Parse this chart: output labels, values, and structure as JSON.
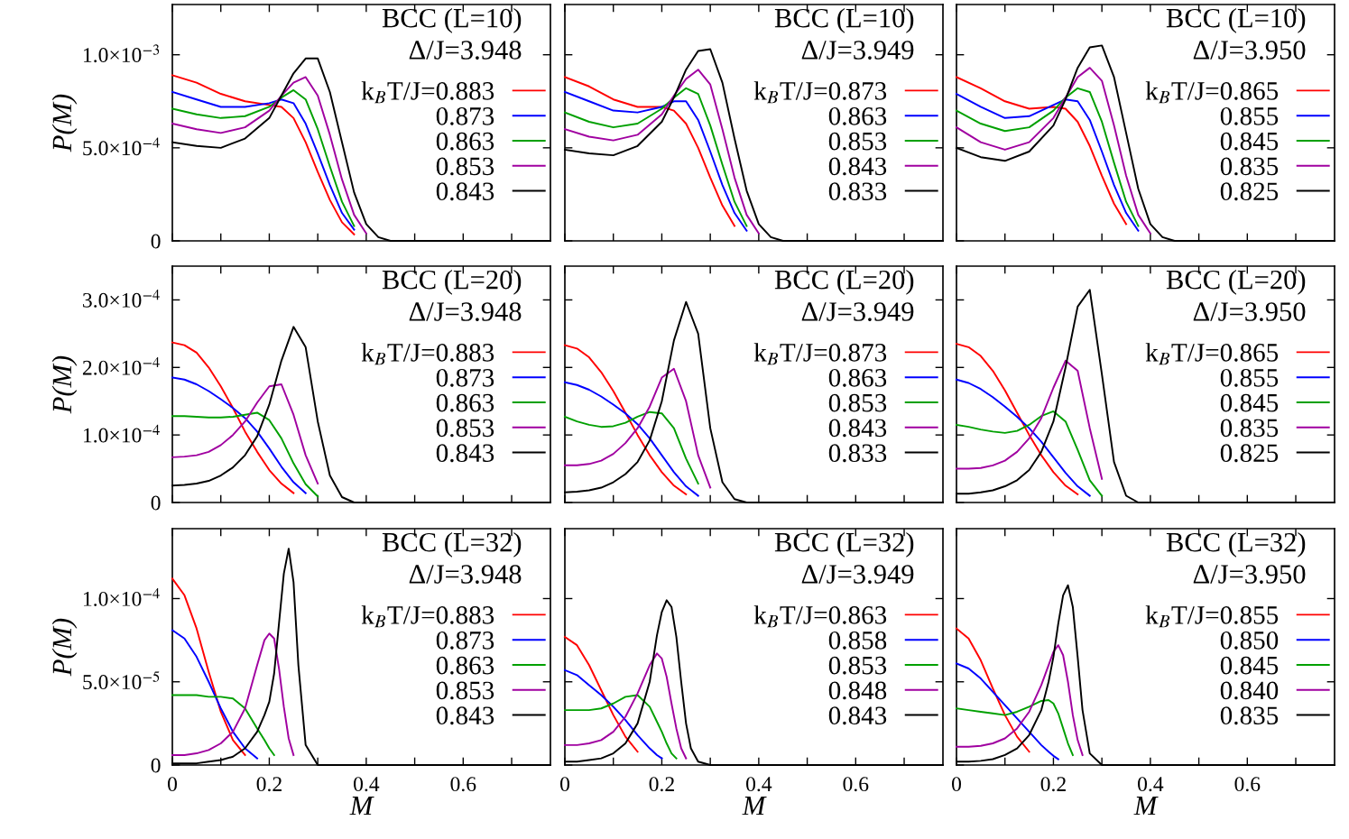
{
  "chart_data": [
    {
      "type": "line",
      "ylabel": "P(M)",
      "tick_labels": "y",
      "legend": "right",
      "annotations": [
        "BCC (L=10)",
        "Δ/J=3.948"
      ],
      "xlim": [
        0,
        0.78
      ],
      "ylim": [
        0,
        0.00127
      ],
      "xticks": [
        {
          "value": 0,
          "label": null
        },
        {
          "value": 0.1,
          "label": null
        },
        {
          "value": 0.2,
          "label": null
        },
        {
          "value": 0.3,
          "label": null
        },
        {
          "value": 0.4,
          "label": null
        },
        {
          "value": 0.5,
          "label": null
        },
        {
          "value": 0.6,
          "label": null
        },
        {
          "value": 0.7,
          "label": null
        }
      ],
      "yticks": [
        0,
        {
          "value": 0.0005,
          "label": "5.0×10$^{−4}$"
        },
        {
          "value": 0.001,
          "label": "1.0×10$^{−3}$"
        }
      ],
      "x": [
        0,
        0.05,
        0.1,
        0.15,
        0.2,
        0.225,
        0.25,
        0.275,
        0.3,
        0.325,
        0.35,
        0.375,
        0.4,
        0.425,
        0.45,
        0.78
      ],
      "series": [
        {
          "name": "k$_{B}$T/J=0.883",
          "color": "#ff0000",
          "values": [
            0.00089,
            0.00085,
            0.00079,
            0.00075,
            0.00073,
            0.00072,
            0.00066,
            0.00053,
            0.00037,
            0.00022,
            0.0001,
            3.5e-05,
            null,
            null,
            null,
            null
          ]
        },
        {
          "name": "0.873",
          "color": "#0000ff",
          "values": [
            0.0008,
            0.00076,
            0.00072,
            0.00072,
            0.00074,
            0.00076,
            0.00074,
            0.00063,
            0.00047,
            0.0003,
            0.00015,
            6e-05,
            null,
            null,
            null,
            null
          ]
        },
        {
          "name": "0.863",
          "color": "#00a000",
          "values": [
            0.00071,
            0.00068,
            0.00066,
            0.00067,
            0.00072,
            0.00077,
            0.00081,
            0.00076,
            0.0006,
            0.0004,
            0.00021,
            8e-05,
            null,
            null,
            null,
            null
          ]
        },
        {
          "name": "0.853",
          "color": "#a000a0",
          "values": [
            0.00063,
            0.0006,
            0.00058,
            0.00061,
            0.0007,
            0.00078,
            0.00085,
            0.00088,
            0.00078,
            0.00057,
            0.00033,
            0.00014,
            4e-05,
            null,
            null,
            null
          ]
        },
        {
          "name": "0.843",
          "color": "#000000",
          "values": [
            0.00053,
            0.00051,
            0.0005,
            0.00055,
            0.00066,
            0.00078,
            0.0009,
            0.00098,
            0.00098,
            0.0008,
            0.00053,
            0.00026,
            9e-05,
            2e-05,
            0,
            0
          ]
        }
      ]
    },
    {
      "type": "line",
      "tick_labels": false,
      "legend": "right",
      "annotations": [
        "BCC (L=10)",
        "Δ/J=3.949"
      ],
      "xlim": [
        0,
        0.78
      ],
      "ylim": [
        0,
        0.00127
      ],
      "xticks": [
        {
          "value": 0,
          "label": null
        },
        {
          "value": 0.1,
          "label": null
        },
        {
          "value": 0.2,
          "label": null
        },
        {
          "value": 0.3,
          "label": null
        },
        {
          "value": 0.4,
          "label": null
        },
        {
          "value": 0.5,
          "label": null
        },
        {
          "value": 0.6,
          "label": null
        },
        {
          "value": 0.7,
          "label": null
        }
      ],
      "yticks": [
        {
          "value": 0,
          "label": null
        },
        {
          "value": 0.0005,
          "label": null
        },
        {
          "value": 0.001,
          "label": null
        }
      ],
      "x": [
        0,
        0.05,
        0.1,
        0.15,
        0.2,
        0.225,
        0.25,
        0.275,
        0.3,
        0.325,
        0.35,
        0.375,
        0.4,
        0.425,
        0.45,
        0.78
      ],
      "series": [
        {
          "name": "k$_{B}$T/J=0.873",
          "color": "#ff0000",
          "values": [
            0.00088,
            0.00083,
            0.00076,
            0.00072,
            0.00072,
            0.0007,
            0.00063,
            0.0005,
            0.00034,
            0.00019,
            8e-05,
            null,
            null,
            null,
            null,
            null
          ]
        },
        {
          "name": "0.863",
          "color": "#0000ff",
          "values": [
            0.0008,
            0.00075,
            0.0007,
            0.00069,
            0.00072,
            0.00075,
            0.00075,
            0.00065,
            0.00048,
            0.0003,
            0.00015,
            5.5e-05,
            null,
            null,
            null,
            null
          ]
        },
        {
          "name": "0.853",
          "color": "#00a000",
          "values": [
            0.00069,
            0.00064,
            0.00061,
            0.00063,
            0.00071,
            0.00077,
            0.00082,
            0.00079,
            0.00062,
            0.00041,
            0.00021,
            8e-05,
            null,
            null,
            null,
            null
          ]
        },
        {
          "name": "0.843",
          "color": "#a000a0",
          "values": [
            0.0006,
            0.00056,
            0.00054,
            0.00057,
            0.00068,
            0.00078,
            0.00087,
            0.00092,
            0.00084,
            0.0006,
            0.00034,
            0.00014,
            4e-05,
            null,
            null,
            null
          ]
        },
        {
          "name": "0.833",
          "color": "#000000",
          "values": [
            0.00049,
            0.00047,
            0.00046,
            0.00051,
            0.00064,
            0.00077,
            0.00092,
            0.00102,
            0.00103,
            0.00085,
            0.00055,
            0.00027,
            9e-05,
            2e-05,
            0,
            0
          ]
        }
      ]
    },
    {
      "type": "line",
      "tick_labels": false,
      "legend": "right",
      "annotations": [
        "BCC (L=10)",
        "Δ/J=3.950"
      ],
      "xlim": [
        0,
        0.78
      ],
      "ylim": [
        0,
        0.00127
      ],
      "xticks": [
        {
          "value": 0,
          "label": null
        },
        {
          "value": 0.1,
          "label": null
        },
        {
          "value": 0.2,
          "label": null
        },
        {
          "value": 0.3,
          "label": null
        },
        {
          "value": 0.4,
          "label": null
        },
        {
          "value": 0.5,
          "label": null
        },
        {
          "value": 0.6,
          "label": null
        },
        {
          "value": 0.7,
          "label": null
        }
      ],
      "yticks": [
        {
          "value": 0,
          "label": null
        },
        {
          "value": 0.0005,
          "label": null
        },
        {
          "value": 0.001,
          "label": null
        }
      ],
      "x": [
        0,
        0.05,
        0.1,
        0.15,
        0.2,
        0.225,
        0.25,
        0.275,
        0.3,
        0.325,
        0.35,
        0.375,
        0.4,
        0.425,
        0.45,
        0.78
      ],
      "series": [
        {
          "name": "k$_{B}$T/J=0.865",
          "color": "#ff0000",
          "values": [
            0.00088,
            0.00082,
            0.00075,
            0.00071,
            0.00072,
            0.00071,
            0.00064,
            0.00051,
            0.00035,
            0.0002,
            9e-05,
            null,
            null,
            null,
            null,
            null
          ]
        },
        {
          "name": "0.855",
          "color": "#0000ff",
          "values": [
            0.00079,
            0.00072,
            0.00066,
            0.00067,
            0.00073,
            0.00076,
            0.00075,
            0.00065,
            0.00048,
            0.0003,
            0.00015,
            5.5e-05,
            null,
            null,
            null,
            null
          ]
        },
        {
          "name": "0.845",
          "color": "#00a000",
          "values": [
            0.0007,
            0.00063,
            0.00059,
            0.00061,
            0.0007,
            0.00077,
            0.00082,
            0.0008,
            0.00064,
            0.00042,
            0.00021,
            8e-05,
            null,
            null,
            null,
            null
          ]
        },
        {
          "name": "0.835",
          "color": "#a000a0",
          "values": [
            0.00061,
            0.00053,
            0.00049,
            0.00053,
            0.00066,
            0.00077,
            0.00088,
            0.00093,
            0.00086,
            0.00062,
            0.00035,
            0.00014,
            4e-05,
            null,
            null,
            null
          ]
        },
        {
          "name": "0.825",
          "color": "#000000",
          "values": [
            0.0005,
            0.00045,
            0.00043,
            0.00048,
            0.00062,
            0.00076,
            0.00093,
            0.00104,
            0.00105,
            0.00088,
            0.00058,
            0.00028,
            9e-05,
            2e-05,
            0,
            0
          ]
        }
      ]
    },
    {
      "type": "line",
      "ylabel": "P(M)",
      "tick_labels": "y",
      "legend": "right",
      "annotations": [
        "BCC (L=20)",
        "Δ/J=3.948"
      ],
      "xlim": [
        0,
        0.78
      ],
      "ylim": [
        0,
        0.00035
      ],
      "xticks": [
        {
          "value": 0,
          "label": null
        },
        {
          "value": 0.1,
          "label": null
        },
        {
          "value": 0.2,
          "label": null
        },
        {
          "value": 0.3,
          "label": null
        },
        {
          "value": 0.4,
          "label": null
        },
        {
          "value": 0.5,
          "label": null
        },
        {
          "value": 0.6,
          "label": null
        },
        {
          "value": 0.7,
          "label": null
        }
      ],
      "yticks": [
        0,
        {
          "value": 0.0001,
          "label": "1.0×10$^{−4}$"
        },
        {
          "value": 0.0002,
          "label": "2.0×10$^{−4}$"
        },
        {
          "value": 0.0003,
          "label": "3.0×10$^{−4}$"
        }
      ],
      "x": [
        0,
        0.025,
        0.05,
        0.075,
        0.1,
        0.125,
        0.15,
        0.175,
        0.2,
        0.225,
        0.25,
        0.275,
        0.3,
        0.325,
        0.35,
        0.375,
        0.4,
        0.45,
        0.78
      ],
      "series": [
        {
          "name": "k$_{B}$T/J=0.883",
          "color": "#ff0000",
          "values": [
            0.000237,
            0.000233,
            0.000222,
            0.0002,
            0.000172,
            0.00014,
            0.000105,
            7.5e-05,
            4.8e-05,
            2.8e-05,
            1.4e-05,
            null,
            null,
            null,
            null,
            null,
            null,
            null,
            null
          ]
        },
        {
          "name": "0.873",
          "color": "#0000ff",
          "values": [
            0.000185,
            0.000182,
            0.000175,
            0.000165,
            0.000153,
            0.00014,
            0.000125,
            0.000105,
            8e-05,
            5.3e-05,
            3e-05,
            1.4e-05,
            null,
            null,
            null,
            null,
            null,
            null,
            null
          ]
        },
        {
          "name": "0.863",
          "color": "#00a000",
          "values": [
            0.000128,
            0.000128,
            0.000127,
            0.000126,
            0.000126,
            0.000127,
            0.00013,
            0.000133,
            0.000122,
            9.5e-05,
            5.8e-05,
            2.7e-05,
            9e-06,
            null,
            null,
            null,
            null,
            null,
            null
          ]
        },
        {
          "name": "0.853",
          "color": "#a000a0",
          "values": [
            6.7e-05,
            6.8e-05,
            7e-05,
            7.5e-05,
            8.5e-05,
            0.0001,
            0.00012,
            0.000148,
            0.000172,
            0.000175,
            0.00013,
            7e-05,
            2.8e-05,
            null,
            null,
            null,
            null,
            null,
            null
          ]
        },
        {
          "name": "0.843",
          "color": "#000000",
          "values": [
            2.5e-05,
            2.6e-05,
            2.8e-05,
            3.2e-05,
            4e-05,
            5.2e-05,
            7e-05,
            9.8e-05,
            0.000145,
            0.00021,
            0.00026,
            0.00023,
            0.00012,
            4e-05,
            8e-06,
            0,
            0,
            0,
            0
          ]
        }
      ]
    },
    {
      "type": "line",
      "tick_labels": false,
      "legend": "right",
      "annotations": [
        "BCC (L=20)",
        "Δ/J=3.949"
      ],
      "xlim": [
        0,
        0.78
      ],
      "ylim": [
        0,
        0.00035
      ],
      "xticks": [
        {
          "value": 0,
          "label": null
        },
        {
          "value": 0.1,
          "label": null
        },
        {
          "value": 0.2,
          "label": null
        },
        {
          "value": 0.3,
          "label": null
        },
        {
          "value": 0.4,
          "label": null
        },
        {
          "value": 0.5,
          "label": null
        },
        {
          "value": 0.6,
          "label": null
        },
        {
          "value": 0.7,
          "label": null
        }
      ],
      "yticks": [
        {
          "value": 0,
          "label": null
        },
        {
          "value": 0.0001,
          "label": null
        },
        {
          "value": 0.0002,
          "label": null
        },
        {
          "value": 0.0003,
          "label": null
        }
      ],
      "x": [
        0,
        0.025,
        0.05,
        0.075,
        0.1,
        0.125,
        0.15,
        0.175,
        0.2,
        0.225,
        0.25,
        0.275,
        0.3,
        0.325,
        0.35,
        0.375,
        0.4,
        0.45,
        0.78
      ],
      "series": [
        {
          "name": "k$_{B}$T/J=0.873",
          "color": "#ff0000",
          "values": [
            0.000233,
            0.000228,
            0.000215,
            0.000193,
            0.000165,
            0.000133,
            0.0001,
            7e-05,
            4.5e-05,
            2.5e-05,
            1.2e-05,
            null,
            null,
            null,
            null,
            null,
            null,
            null,
            null
          ]
        },
        {
          "name": "0.863",
          "color": "#0000ff",
          "values": [
            0.000178,
            0.000174,
            0.000167,
            0.000157,
            0.000145,
            0.000132,
            0.000116,
            9.5e-05,
            7e-05,
            4.5e-05,
            2.4e-05,
            1e-05,
            null,
            null,
            null,
            null,
            null,
            null,
            null
          ]
        },
        {
          "name": "0.853",
          "color": "#00a000",
          "values": [
            0.000127,
            0.00012,
            0.000115,
            0.000112,
            0.000113,
            0.000118,
            0.000127,
            0.000134,
            0.000132,
            0.00011,
            6.5e-05,
            2.8e-05,
            null,
            null,
            null,
            null,
            null,
            null,
            null
          ]
        },
        {
          "name": "0.843",
          "color": "#a000a0",
          "values": [
            5.5e-05,
            5.5e-05,
            5.7e-05,
            6.2e-05,
            7.2e-05,
            8.8e-05,
            0.00011,
            0.000142,
            0.000185,
            0.000198,
            0.00015,
            7e-05,
            2.2e-05,
            null,
            null,
            null,
            null,
            null,
            null
          ]
        },
        {
          "name": "0.833",
          "color": "#000000",
          "values": [
            1.5e-05,
            1.6e-05,
            1.8e-05,
            2.2e-05,
            3e-05,
            4.2e-05,
            6e-05,
            9.2e-05,
            0.00015,
            0.00024,
            0.000297,
            0.00025,
            0.00011,
            3e-05,
            5e-06,
            0,
            0,
            0,
            0
          ]
        }
      ]
    },
    {
      "type": "line",
      "tick_labels": false,
      "legend": "right",
      "annotations": [
        "BCC (L=20)",
        "Δ/J=3.950"
      ],
      "xlim": [
        0,
        0.78
      ],
      "ylim": [
        0,
        0.00035
      ],
      "xticks": [
        {
          "value": 0,
          "label": null
        },
        {
          "value": 0.1,
          "label": null
        },
        {
          "value": 0.2,
          "label": null
        },
        {
          "value": 0.3,
          "label": null
        },
        {
          "value": 0.4,
          "label": null
        },
        {
          "value": 0.5,
          "label": null
        },
        {
          "value": 0.6,
          "label": null
        },
        {
          "value": 0.7,
          "label": null
        }
      ],
      "yticks": [
        {
          "value": 0,
          "label": null
        },
        {
          "value": 0.0001,
          "label": null
        },
        {
          "value": 0.0002,
          "label": null
        },
        {
          "value": 0.0003,
          "label": null
        }
      ],
      "x": [
        0,
        0.025,
        0.05,
        0.075,
        0.1,
        0.125,
        0.15,
        0.175,
        0.2,
        0.225,
        0.25,
        0.275,
        0.3,
        0.325,
        0.35,
        0.375,
        0.4,
        0.45,
        0.78
      ],
      "series": [
        {
          "name": "k$_{B}$T/J=0.865",
          "color": "#ff0000",
          "values": [
            0.000235,
            0.00023,
            0.000217,
            0.000195,
            0.000166,
            0.000133,
            0.0001,
            7e-05,
            4.5e-05,
            2.5e-05,
            1.2e-05,
            null,
            null,
            null,
            null,
            null,
            null,
            null,
            null
          ]
        },
        {
          "name": "0.855",
          "color": "#0000ff",
          "values": [
            0.000182,
            0.000177,
            0.000168,
            0.000156,
            0.000142,
            0.000127,
            0.00011,
            9e-05,
            6.7e-05,
            4.4e-05,
            2.4e-05,
            1e-05,
            null,
            null,
            null,
            null,
            null,
            null,
            null
          ]
        },
        {
          "name": "0.845",
          "color": "#00a000",
          "values": [
            0.000115,
            0.000112,
            0.000108,
            0.000105,
            0.000103,
            0.000106,
            0.000115,
            0.000128,
            0.000135,
            0.00012,
            7.8e-05,
            3.3e-05,
            1e-05,
            null,
            null,
            null,
            null,
            null,
            null
          ]
        },
        {
          "name": "0.835",
          "color": "#a000a0",
          "values": [
            5e-05,
            5e-05,
            5.1e-05,
            5.5e-05,
            6.2e-05,
            7.5e-05,
            9.5e-05,
            0.000125,
            0.00017,
            0.00021,
            0.000195,
            0.00011,
            3.5e-05,
            null,
            null,
            null,
            null,
            null,
            null
          ]
        },
        {
          "name": "0.825",
          "color": "#000000",
          "values": [
            1.3e-05,
            1.3e-05,
            1.5e-05,
            1.8e-05,
            2.4e-05,
            3.3e-05,
            4.8e-05,
            7.5e-05,
            0.00012,
            0.0002,
            0.00029,
            0.000315,
            0.00019,
            6e-05,
            1e-05,
            0,
            0,
            0,
            0
          ]
        }
      ]
    },
    {
      "type": "line",
      "xlabel": "M",
      "ylabel": "P(M)",
      "legend": "right",
      "annotations": [
        "BCC (L=32)",
        "Δ/J=3.948"
      ],
      "xlim": [
        0,
        0.78
      ],
      "ylim": [
        0,
        0.000142
      ],
      "xticks": [
        0,
        {
          "value": 0.1,
          "label": null
        },
        0.2,
        {
          "value": 0.3,
          "label": null
        },
        0.4,
        {
          "value": 0.5,
          "label": null
        },
        0.6,
        {
          "value": 0.7,
          "label": null
        }
      ],
      "yticks": [
        0,
        {
          "value": 5e-05,
          "label": "5.0×10$^{−5}$"
        },
        {
          "value": 0.0001,
          "label": "1.0×10$^{−4}$"
        }
      ],
      "x": [
        0,
        0.025,
        0.05,
        0.075,
        0.1,
        0.125,
        0.15,
        0.175,
        0.19,
        0.2,
        0.21,
        0.22,
        0.23,
        0.24,
        0.25,
        0.26,
        0.275,
        0.3,
        0.35,
        0.78
      ],
      "series": [
        {
          "name": "k$_{B}$T/J=0.883",
          "color": "#ff0000",
          "values": [
            0.000112,
            0.000102,
            8.2e-05,
            5.6e-05,
            3.2e-05,
            1.5e-05,
            6e-06,
            null,
            null,
            null,
            null,
            null,
            null,
            null,
            null,
            null,
            null,
            null,
            null,
            null
          ]
        },
        {
          "name": "0.873",
          "color": "#0000ff",
          "values": [
            8.1e-05,
            7.6e-05,
            6.5e-05,
            5e-05,
            3.4e-05,
            2e-05,
            1e-05,
            4e-06,
            null,
            null,
            null,
            null,
            null,
            null,
            null,
            null,
            null,
            null,
            null,
            null
          ]
        },
        {
          "name": "0.863",
          "color": "#00a000",
          "values": [
            4.2e-05,
            4.2e-05,
            4.2e-05,
            4.1e-05,
            4.1e-05,
            4e-05,
            3.4e-05,
            2.2e-05,
            1.5e-05,
            1e-05,
            6e-06,
            null,
            null,
            null,
            null,
            null,
            null,
            null,
            null,
            null
          ]
        },
        {
          "name": "0.853",
          "color": "#a000a0",
          "values": [
            6e-06,
            6e-06,
            7e-06,
            9e-06,
            1.3e-05,
            2e-05,
            3.4e-05,
            6e-05,
            7.5e-05,
            7.9e-05,
            7.6e-05,
            5.8e-05,
            3.5e-05,
            1.6e-05,
            6e-06,
            null,
            null,
            null,
            null,
            null
          ]
        },
        {
          "name": "0.843",
          "color": "#000000",
          "values": [
            1e-06,
            1e-06,
            1e-06,
            2e-06,
            3e-06,
            5e-06,
            1e-05,
            2e-05,
            3e-05,
            3.8e-05,
            5.5e-05,
            8.5e-05,
            0.000115,
            0.00013,
            0.00011,
            6e-05,
            1.2e-05,
            0,
            0,
            0
          ]
        }
      ]
    },
    {
      "type": "line",
      "xlabel": "M",
      "tick_labels": "x",
      "legend": "right",
      "annotations": [
        "BCC (L=32)",
        "Δ/J=3.949"
      ],
      "xlim": [
        0,
        0.78
      ],
      "ylim": [
        0,
        0.000142
      ],
      "xticks": [
        0,
        {
          "value": 0.1,
          "label": null
        },
        0.2,
        {
          "value": 0.3,
          "label": null
        },
        0.4,
        {
          "value": 0.5,
          "label": null
        },
        0.6,
        {
          "value": 0.7,
          "label": null
        }
      ],
      "yticks": [
        {
          "value": 0,
          "label": null
        },
        {
          "value": 5e-05,
          "label": null
        },
        {
          "value": 0.0001,
          "label": null
        }
      ],
      "x": [
        0,
        0.025,
        0.05,
        0.075,
        0.1,
        0.125,
        0.15,
        0.175,
        0.19,
        0.2,
        0.21,
        0.22,
        0.23,
        0.24,
        0.25,
        0.26,
        0.275,
        0.3,
        0.35,
        0.78
      ],
      "series": [
        {
          "name": "k$_{B}$T/J=0.863",
          "color": "#ff0000",
          "values": [
            7.7e-05,
            7.2e-05,
            6e-05,
            4.5e-05,
            3e-05,
            1.7e-05,
            8e-06,
            null,
            null,
            null,
            null,
            null,
            null,
            null,
            null,
            null,
            null,
            null,
            null,
            null
          ]
        },
        {
          "name": "0.858",
          "color": "#0000ff",
          "values": [
            5.7e-05,
            5.4e-05,
            4.8e-05,
            4.2e-05,
            3.5e-05,
            2.7e-05,
            1.8e-05,
            1e-05,
            6e-06,
            4e-06,
            null,
            null,
            null,
            null,
            null,
            null,
            null,
            null,
            null,
            null
          ]
        },
        {
          "name": "0.853",
          "color": "#00a000",
          "values": [
            3.3e-05,
            3.3e-05,
            3.3e-05,
            3.4e-05,
            3.7e-05,
            4.1e-05,
            4.2e-05,
            3.5e-05,
            2.6e-05,
            2e-05,
            1.3e-05,
            7e-06,
            4e-06,
            null,
            null,
            null,
            null,
            null,
            null,
            null
          ]
        },
        {
          "name": "0.848",
          "color": "#a000a0",
          "values": [
            1.2e-05,
            1.2e-05,
            1.3e-05,
            1.5e-05,
            2e-05,
            2.9e-05,
            4.3e-05,
            6e-05,
            6.7e-05,
            6.4e-05,
            5.3e-05,
            3.7e-05,
            2.2e-05,
            1e-05,
            4e-06,
            null,
            null,
            null,
            null,
            null
          ]
        },
        {
          "name": "0.843",
          "color": "#000000",
          "values": [
            2e-06,
            2e-06,
            3e-06,
            4e-06,
            7e-06,
            1.3e-05,
            2.5e-05,
            5e-05,
            7.8e-05,
            9.2e-05,
            9.9e-05,
            9.5e-05,
            7.7e-05,
            5e-05,
            2.5e-05,
            1e-05,
            2e-06,
            0,
            0,
            0
          ]
        }
      ]
    },
    {
      "type": "line",
      "xlabel": "M",
      "tick_labels": "x",
      "legend": "right",
      "annotations": [
        "BCC (L=32)",
        "Δ/J=3.950"
      ],
      "xlim": [
        0,
        0.78
      ],
      "ylim": [
        0,
        0.000142
      ],
      "xticks": [
        0,
        {
          "value": 0.1,
          "label": null
        },
        0.2,
        {
          "value": 0.3,
          "label": null
        },
        0.4,
        {
          "value": 0.5,
          "label": null
        },
        0.6,
        {
          "value": 0.7,
          "label": null
        }
      ],
      "yticks": [
        {
          "value": 0,
          "label": null
        },
        {
          "value": 5e-05,
          "label": null
        },
        {
          "value": 0.0001,
          "label": null
        }
      ],
      "x": [
        0,
        0.025,
        0.05,
        0.075,
        0.1,
        0.125,
        0.15,
        0.175,
        0.19,
        0.2,
        0.21,
        0.22,
        0.23,
        0.24,
        0.25,
        0.26,
        0.275,
        0.3,
        0.35,
        0.78
      ],
      "series": [
        {
          "name": "k$_{B}$T/J=0.855",
          "color": "#ff0000",
          "values": [
            8.2e-05,
            7.6e-05,
            6.3e-05,
            4.6e-05,
            3e-05,
            1.7e-05,
            8e-06,
            null,
            null,
            null,
            null,
            null,
            null,
            null,
            null,
            null,
            null,
            null,
            null,
            null
          ]
        },
        {
          "name": "0.850",
          "color": "#0000ff",
          "values": [
            6.1e-05,
            5.8e-05,
            5.2e-05,
            4.4e-05,
            3.6e-05,
            2.8e-05,
            2e-05,
            1.2e-05,
            8e-06,
            5.5e-06,
            3.5e-06,
            null,
            null,
            null,
            null,
            null,
            null,
            null,
            null,
            null
          ]
        },
        {
          "name": "0.845",
          "color": "#00a000",
          "values": [
            3.4e-05,
            3.3e-05,
            3.2e-05,
            3.1e-05,
            3e-05,
            3.2e-05,
            3.5e-05,
            3.85e-05,
            3.9e-05,
            3.7e-05,
            3.1e-05,
            2.2e-05,
            1.3e-05,
            6e-06,
            null,
            null,
            null,
            null,
            null,
            null
          ]
        },
        {
          "name": "0.840",
          "color": "#a000a0",
          "values": [
            1.1e-05,
            1.1e-05,
            1.15e-05,
            1.3e-05,
            1.6e-05,
            2.2e-05,
            3.2e-05,
            4.8e-05,
            6e-05,
            6.8e-05,
            7.2e-05,
            6.6e-05,
            5e-05,
            3e-05,
            1.5e-05,
            6e-06,
            null,
            null,
            null,
            null
          ]
        },
        {
          "name": "0.835",
          "color": "#000000",
          "values": [
            2e-06,
            2e-06,
            2.5e-06,
            3.5e-06,
            6e-06,
            1e-05,
            1.8e-05,
            3.3e-05,
            5e-05,
            6.5e-05,
            8.5e-05,
            0.000102,
            0.000108,
            9.5e-05,
            6.5e-05,
            3.3e-05,
            7e-06,
            0,
            0,
            0
          ]
        }
      ]
    }
  ]
}
